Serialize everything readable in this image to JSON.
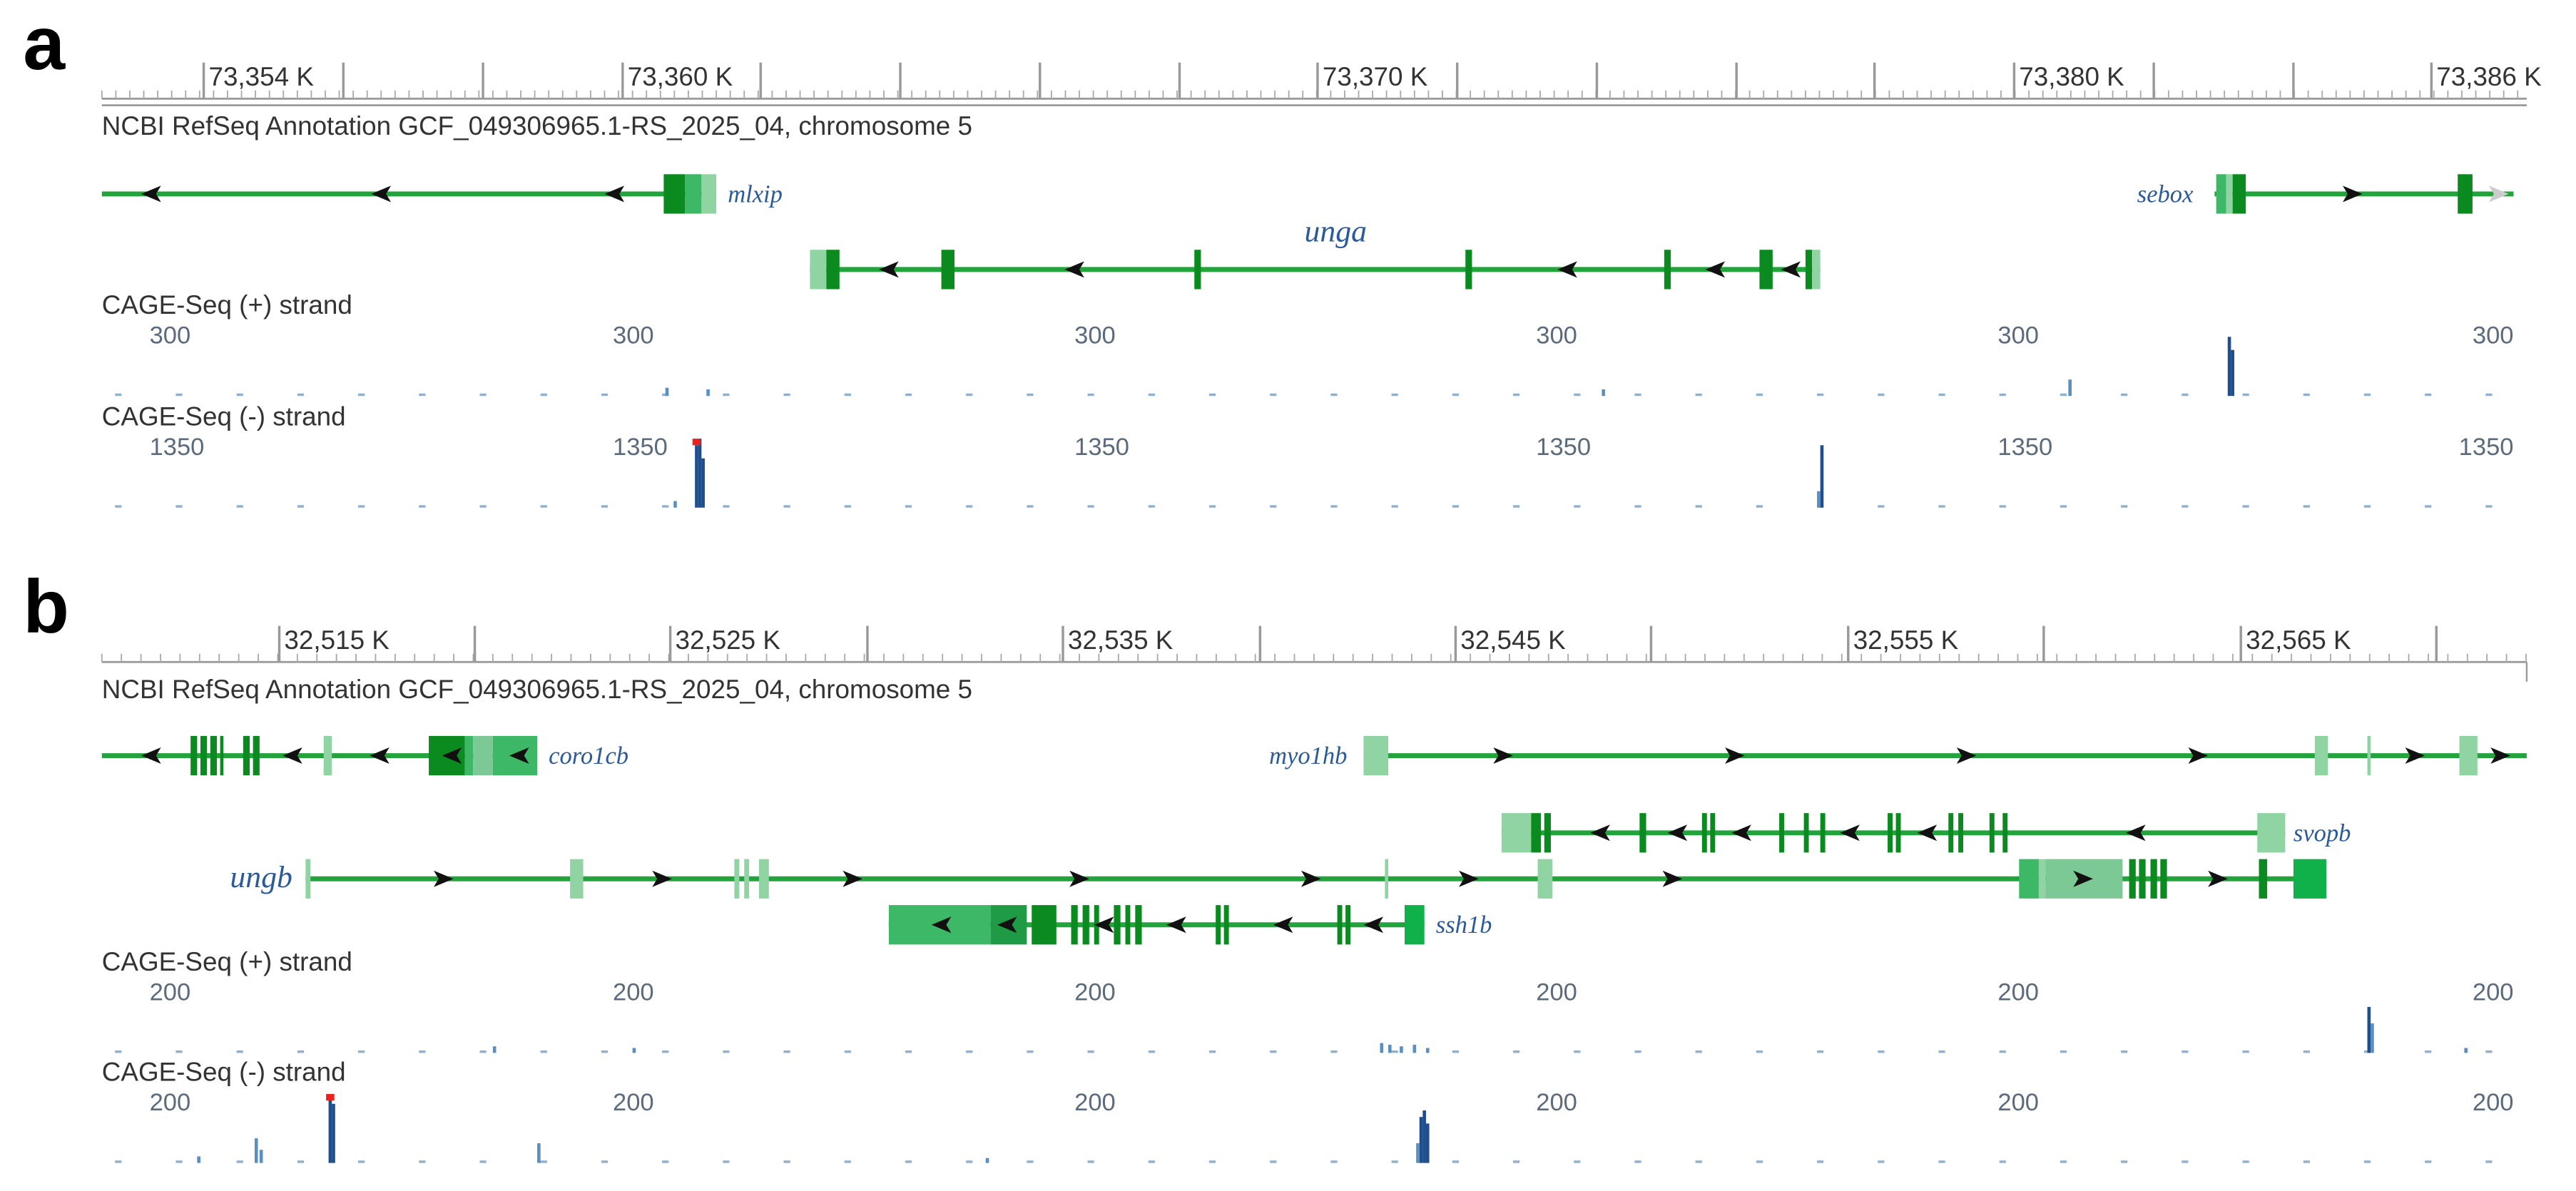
{
  "panels": [
    {
      "label": "a",
      "ruler": [
        "73,354 K",
        "73,360 K",
        "73,370 K",
        "73,380 K",
        "73,386 K"
      ],
      "track_title": "NCBI RefSeq Annotation GCF_049306965.1-RS_2025_04, chromosome 5",
      "genes": [
        "mlxip",
        "sebox",
        "unga"
      ],
      "cage_plus": {
        "title": "CAGE-Seq (+) strand",
        "scale": [
          "300",
          "300",
          "300",
          "300",
          "300",
          "300"
        ]
      },
      "cage_minus": {
        "title": "CAGE-Seq (-) strand",
        "scale": [
          "1350",
          "1350",
          "1350",
          "1350",
          "1350",
          "1350"
        ]
      }
    },
    {
      "label": "b",
      "ruler": [
        "32,515 K",
        "32,525 K",
        "32,535 K",
        "32,545 K",
        "32,555 K",
        "32,565 K"
      ],
      "track_title": "NCBI RefSeq Annotation GCF_049306965.1-RS_2025_04, chromosome 5",
      "genes": [
        "coro1cb",
        "myo1hb",
        "svopb",
        "ungb",
        "ssh1b"
      ],
      "cage_plus": {
        "title": "CAGE-Seq (+) strand",
        "scale": [
          "200",
          "200",
          "200",
          "200",
          "200",
          "200"
        ]
      },
      "cage_minus": {
        "title": "CAGE-Seq (-) strand",
        "scale": [
          "200",
          "200",
          "200",
          "200",
          "200",
          "200"
        ]
      }
    }
  ]
}
